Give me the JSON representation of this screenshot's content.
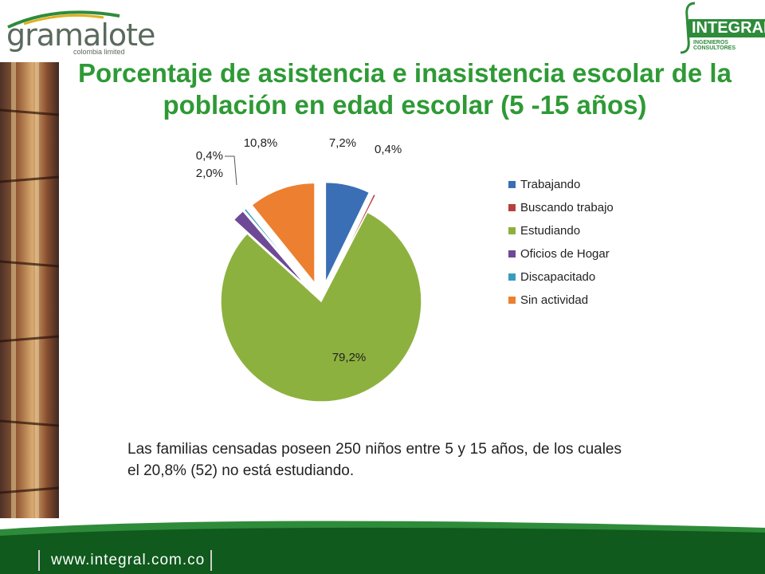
{
  "logos": {
    "left_name": "gramalote",
    "left_sub": "colombia limited",
    "right_name": "INTEGRAL",
    "right_sub": "INGENIEROS CONSULTORES"
  },
  "title": "Porcentaje de asistencia e inasistencia escolar de la población en edad escolar (5 -15 años)",
  "caption": "Las familias censadas poseen 250 niños entre 5 y 15 años, de los cuales el 20,8% (52) no está estudiando.",
  "footer": {
    "url": "www.integral.com.co"
  },
  "colors": {
    "title": "#2e9a35",
    "accent": "#2e8b3a"
  },
  "chart_data": {
    "type": "pie",
    "title": "",
    "categories": [
      "Trabajando",
      "Buscando trabajo",
      "Estudiando",
      "Oficios de Hogar",
      "Discapacitado",
      "Sin actividad"
    ],
    "values": [
      7.2,
      0.4,
      79.2,
      2.0,
      0.4,
      10.8
    ],
    "labels": [
      "7,2%",
      "0,4%",
      "79,2%",
      "2,0%",
      "0,4%",
      "10,8%"
    ],
    "colors": [
      "#3a6fb5",
      "#b8403c",
      "#8db13e",
      "#6e4a96",
      "#3a9cbd",
      "#ec8030"
    ],
    "exploded": true,
    "legend_position": "right"
  }
}
